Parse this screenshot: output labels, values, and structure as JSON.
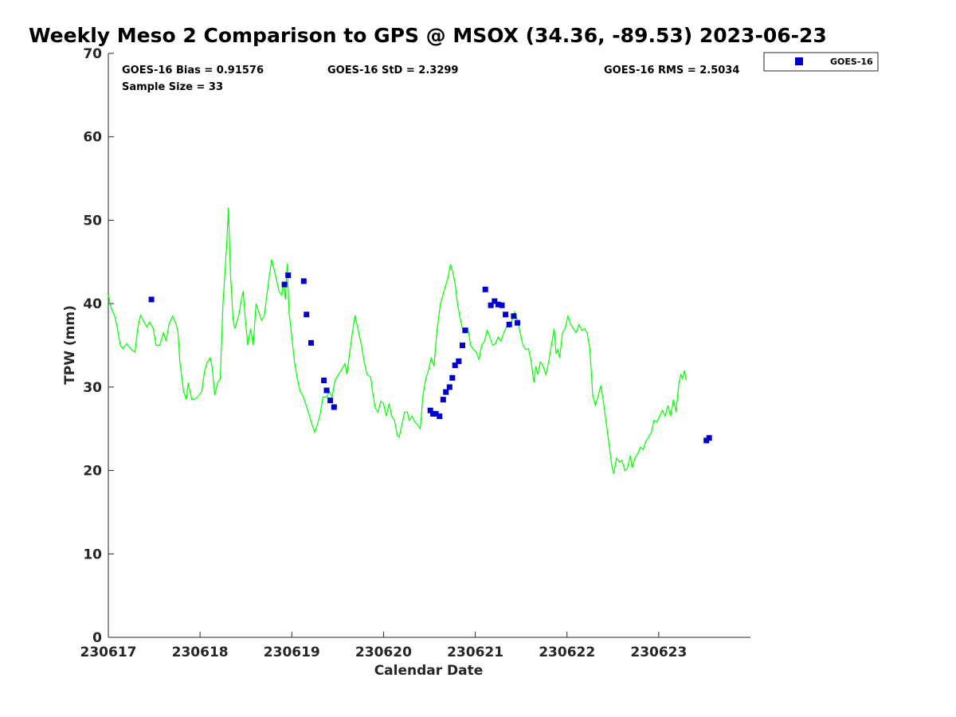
{
  "chart_data": {
    "type": "scatter",
    "title": "Weekly Meso 2 Comparison to GPS @ MSOX (34.36, -89.53) 2023-06-23",
    "xlabel": "Calendar Date",
    "ylabel": "TPW (mm)",
    "xlim": [
      0,
      7
    ],
    "ylim": [
      0,
      70
    ],
    "x_unit": "days since 230617",
    "x_ticks": [
      0,
      1,
      2,
      3,
      4,
      5,
      6
    ],
    "x_tick_labels": [
      "230617",
      "230618",
      "230619",
      "230620",
      "230621",
      "230622",
      "230623"
    ],
    "y_ticks": [
      0,
      10,
      20,
      30,
      40,
      50,
      60,
      70
    ],
    "y_tick_labels": [
      "0",
      "10",
      "20",
      "30",
      "40",
      "50",
      "60",
      "70"
    ],
    "grid": false,
    "legend_position": "outside-top-right",
    "stats": {
      "bias": "GOES-16 Bias = 0.91576",
      "std": "GOES-16 StD = 2.3299",
      "rms": "GOES-16 RMS = 2.5034",
      "sample": "Sample Size = 33"
    },
    "series": [
      {
        "name": "",
        "kind": "line",
        "color": "#00ff00",
        "points": [
          [
            0.0,
            41.0
          ],
          [
            0.03,
            39.5
          ],
          [
            0.07,
            38.5
          ],
          [
            0.1,
            37.0
          ],
          [
            0.13,
            35.0
          ],
          [
            0.16,
            34.6
          ],
          [
            0.2,
            35.2
          ],
          [
            0.25,
            34.5
          ],
          [
            0.29,
            34.2
          ],
          [
            0.32,
            37.0
          ],
          [
            0.35,
            38.6
          ],
          [
            0.39,
            37.8
          ],
          [
            0.42,
            37.2
          ],
          [
            0.45,
            37.8
          ],
          [
            0.49,
            37.0
          ],
          [
            0.52,
            35.0
          ],
          [
            0.56,
            35.0
          ],
          [
            0.6,
            36.5
          ],
          [
            0.63,
            35.5
          ],
          [
            0.66,
            37.5
          ],
          [
            0.7,
            38.5
          ],
          [
            0.74,
            37.5
          ],
          [
            0.76,
            36.5
          ],
          [
            0.78,
            33.0
          ],
          [
            0.82,
            29.5
          ],
          [
            0.85,
            28.5
          ],
          [
            0.87,
            30.5
          ],
          [
            0.91,
            28.5
          ],
          [
            0.95,
            28.6
          ],
          [
            0.98,
            28.9
          ],
          [
            1.02,
            29.5
          ],
          [
            1.05,
            32.0
          ],
          [
            1.08,
            33.0
          ],
          [
            1.11,
            33.5
          ],
          [
            1.13,
            32.5
          ],
          [
            1.16,
            29.0
          ],
          [
            1.19,
            30.5
          ],
          [
            1.22,
            31.0
          ],
          [
            1.25,
            40.0
          ],
          [
            1.29,
            47.0
          ],
          [
            1.31,
            51.5
          ],
          [
            1.33,
            44.0
          ],
          [
            1.36,
            38.0
          ],
          [
            1.38,
            37.0
          ],
          [
            1.4,
            37.8
          ],
          [
            1.42,
            38.5
          ],
          [
            1.45,
            40.5
          ],
          [
            1.47,
            41.5
          ],
          [
            1.49,
            38.5
          ],
          [
            1.52,
            35.0
          ],
          [
            1.55,
            37.0
          ],
          [
            1.58,
            35.0
          ],
          [
            1.61,
            40.0
          ],
          [
            1.64,
            39.0
          ],
          [
            1.67,
            38.0
          ],
          [
            1.7,
            38.5
          ],
          [
            1.74,
            42.0
          ],
          [
            1.78,
            45.3
          ],
          [
            1.82,
            43.5
          ],
          [
            1.86,
            41.5
          ],
          [
            1.89,
            41.0
          ],
          [
            1.91,
            42.5
          ],
          [
            1.93,
            40.5
          ],
          [
            1.95,
            44.8
          ],
          [
            1.97,
            39.0
          ],
          [
            2.0,
            36.0
          ],
          [
            2.03,
            33.0
          ],
          [
            2.06,
            31.0
          ],
          [
            2.09,
            29.5
          ],
          [
            2.12,
            29.0
          ],
          [
            2.15,
            28.0
          ],
          [
            2.18,
            27.0
          ],
          [
            2.22,
            25.5
          ],
          [
            2.25,
            24.6
          ],
          [
            2.28,
            25.5
          ],
          [
            2.31,
            26.8
          ],
          [
            2.34,
            28.8
          ],
          [
            2.38,
            28.8
          ],
          [
            2.41,
            29.5
          ],
          [
            2.44,
            28.8
          ],
          [
            2.47,
            30.8
          ],
          [
            2.51,
            31.5
          ],
          [
            2.54,
            32.0
          ],
          [
            2.58,
            32.8
          ],
          [
            2.6,
            31.5
          ],
          [
            2.63,
            34.0
          ],
          [
            2.66,
            36.5
          ],
          [
            2.69,
            38.6
          ],
          [
            2.72,
            37.0
          ],
          [
            2.76,
            35.0
          ],
          [
            2.79,
            33.0
          ],
          [
            2.82,
            31.5
          ],
          [
            2.86,
            31.2
          ],
          [
            2.88,
            29.5
          ],
          [
            2.91,
            27.5
          ],
          [
            2.94,
            27.0
          ],
          [
            2.97,
            28.3
          ],
          [
            3.0,
            28.0
          ],
          [
            3.03,
            26.5
          ],
          [
            3.06,
            28.0
          ],
          [
            3.09,
            26.5
          ],
          [
            3.12,
            26.0
          ],
          [
            3.15,
            24.2
          ],
          [
            3.17,
            24.0
          ],
          [
            3.2,
            25.5
          ],
          [
            3.23,
            27.0
          ],
          [
            3.26,
            27.0
          ],
          [
            3.28,
            26.0
          ],
          [
            3.31,
            26.5
          ],
          [
            3.34,
            25.8
          ],
          [
            3.37,
            25.5
          ],
          [
            3.4,
            25.0
          ],
          [
            3.43,
            29.0
          ],
          [
            3.46,
            31.0
          ],
          [
            3.49,
            32.0
          ],
          [
            3.52,
            33.5
          ],
          [
            3.55,
            32.5
          ],
          [
            3.58,
            36.5
          ],
          [
            3.62,
            40.0
          ],
          [
            3.66,
            41.5
          ],
          [
            3.7,
            43.0
          ],
          [
            3.73,
            44.7
          ],
          [
            3.75,
            44.0
          ],
          [
            3.78,
            42.5
          ],
          [
            3.8,
            40.5
          ],
          [
            3.83,
            38.5
          ],
          [
            3.86,
            37.0
          ],
          [
            3.89,
            36.5
          ],
          [
            3.92,
            37.0
          ],
          [
            3.95,
            35.0
          ],
          [
            3.98,
            34.5
          ],
          [
            4.01,
            34.2
          ],
          [
            4.04,
            33.3
          ],
          [
            4.07,
            35.0
          ],
          [
            4.1,
            35.5
          ],
          [
            4.13,
            36.8
          ],
          [
            4.16,
            36.0
          ],
          [
            4.19,
            35.0
          ],
          [
            4.22,
            35.2
          ],
          [
            4.25,
            36.0
          ],
          [
            4.28,
            35.5
          ],
          [
            4.31,
            36.5
          ],
          [
            4.34,
            37.2
          ],
          [
            4.37,
            37.2
          ],
          [
            4.4,
            38.0
          ],
          [
            4.43,
            39.0
          ],
          [
            4.46,
            38.0
          ],
          [
            4.49,
            36.5
          ],
          [
            4.52,
            35.0
          ],
          [
            4.55,
            34.5
          ],
          [
            4.58,
            34.6
          ],
          [
            4.61,
            33.0
          ],
          [
            4.64,
            30.5
          ],
          [
            4.66,
            32.5
          ],
          [
            4.68,
            31.5
          ],
          [
            4.71,
            33.0
          ],
          [
            4.74,
            32.5
          ],
          [
            4.77,
            31.5
          ],
          [
            4.8,
            33.0
          ],
          [
            4.83,
            35.0
          ],
          [
            4.86,
            37.0
          ],
          [
            4.88,
            34.0
          ],
          [
            4.9,
            34.5
          ],
          [
            4.92,
            33.5
          ],
          [
            4.95,
            36.5
          ],
          [
            4.98,
            37.0
          ],
          [
            5.01,
            38.5
          ],
          [
            5.04,
            37.5
          ],
          [
            5.07,
            37.0
          ],
          [
            5.1,
            36.5
          ],
          [
            5.13,
            37.5
          ],
          [
            5.16,
            36.8
          ],
          [
            5.19,
            37.0
          ],
          [
            5.22,
            36.5
          ],
          [
            5.25,
            34.5
          ],
          [
            5.28,
            29.0
          ],
          [
            5.31,
            27.8
          ],
          [
            5.34,
            29.0
          ],
          [
            5.37,
            30.2
          ],
          [
            5.4,
            28.0
          ],
          [
            5.43,
            25.5
          ],
          [
            5.46,
            23.0
          ],
          [
            5.49,
            20.5
          ],
          [
            5.51,
            19.6
          ],
          [
            5.54,
            21.5
          ],
          [
            5.57,
            21.0
          ],
          [
            5.6,
            21.2
          ],
          [
            5.63,
            20.0
          ],
          [
            5.66,
            20.3
          ],
          [
            5.69,
            21.8
          ],
          [
            5.71,
            20.3
          ],
          [
            5.74,
            21.5
          ],
          [
            5.77,
            22.0
          ],
          [
            5.8,
            22.8
          ],
          [
            5.83,
            22.5
          ],
          [
            5.86,
            23.5
          ],
          [
            5.89,
            24.0
          ],
          [
            5.92,
            24.6
          ],
          [
            5.95,
            26.0
          ],
          [
            5.98,
            25.8
          ],
          [
            6.01,
            26.5
          ],
          [
            6.04,
            27.2
          ],
          [
            6.07,
            26.5
          ],
          [
            6.1,
            27.8
          ],
          [
            6.13,
            26.5
          ],
          [
            6.16,
            28.5
          ],
          [
            6.19,
            27.0
          ],
          [
            6.22,
            30.5
          ],
          [
            6.24,
            31.5
          ],
          [
            6.26,
            31.0
          ],
          [
            6.28,
            32.0
          ],
          [
            6.3,
            30.8
          ]
        ]
      },
      {
        "name": "GOES-16",
        "kind": "scatter",
        "color": "#0000cc",
        "points": [
          [
            0.47,
            40.5
          ],
          [
            1.92,
            42.3
          ],
          [
            1.96,
            43.4
          ],
          [
            2.13,
            42.7
          ],
          [
            2.16,
            38.7
          ],
          [
            2.21,
            35.3
          ],
          [
            2.35,
            30.8
          ],
          [
            2.38,
            29.6
          ],
          [
            2.42,
            28.4
          ],
          [
            2.46,
            27.6
          ],
          [
            3.51,
            27.2
          ],
          [
            3.54,
            26.8
          ],
          [
            3.57,
            26.8
          ],
          [
            3.61,
            26.5
          ],
          [
            3.65,
            28.5
          ],
          [
            3.68,
            29.4
          ],
          [
            3.72,
            30.0
          ],
          [
            3.75,
            31.1
          ],
          [
            3.78,
            32.6
          ],
          [
            3.82,
            33.1
          ],
          [
            3.86,
            35.0
          ],
          [
            3.89,
            36.8
          ],
          [
            4.11,
            41.7
          ],
          [
            4.17,
            39.8
          ],
          [
            4.21,
            40.3
          ],
          [
            4.25,
            39.9
          ],
          [
            4.29,
            39.8
          ],
          [
            4.33,
            38.7
          ],
          [
            4.37,
            37.5
          ],
          [
            4.42,
            38.5
          ],
          [
            4.46,
            37.7
          ],
          [
            6.52,
            23.6
          ],
          [
            6.55,
            23.9
          ]
        ]
      }
    ]
  }
}
